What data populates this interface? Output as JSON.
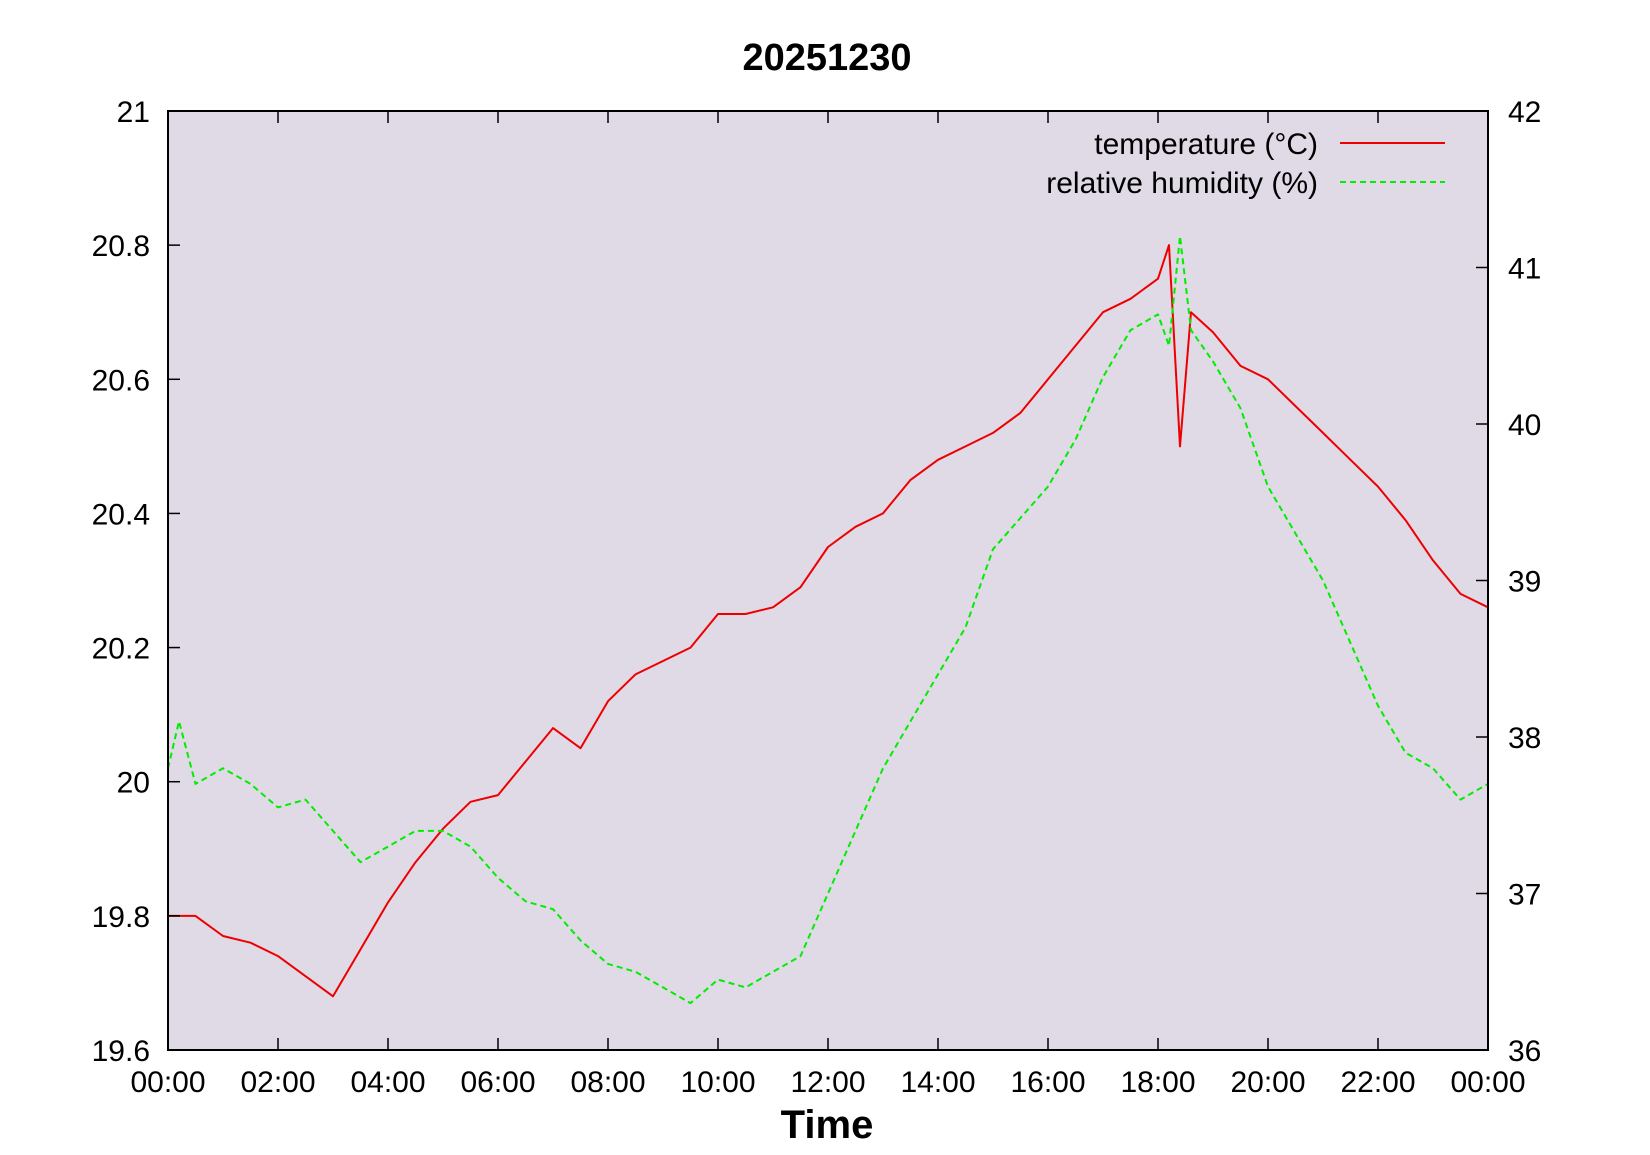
{
  "chart_data": {
    "type": "line",
    "title": "20251230",
    "xlabel": "Time",
    "ylabel_left": "",
    "ylabel_right": "",
    "x_ticks": [
      "00:00",
      "02:00",
      "04:00",
      "06:00",
      "08:00",
      "10:00",
      "12:00",
      "14:00",
      "16:00",
      "18:00",
      "20:00",
      "22:00",
      "00:00"
    ],
    "xlim_hours": [
      0,
      24
    ],
    "ylim_left": [
      19.6,
      21
    ],
    "yticks_left": [
      "19.6",
      "19.8",
      "20",
      "20.2",
      "20.4",
      "20.6",
      "20.8",
      "21"
    ],
    "ylim_right": [
      36,
      42
    ],
    "yticks_right": [
      "36",
      "37",
      "38",
      "39",
      "40",
      "41",
      "42"
    ],
    "grid": false,
    "legend_position": "top-right",
    "plot_background": "#e0d9e6",
    "series": [
      {
        "name": "temperature (°C)",
        "axis": "left",
        "color": "#ee0000",
        "style": "solid",
        "x_hours": [
          0,
          0.5,
          1,
          1.5,
          2,
          2.5,
          3,
          3.5,
          4,
          4.5,
          5,
          5.5,
          6,
          6.5,
          7,
          7.5,
          8,
          8.5,
          9,
          9.5,
          10,
          10.5,
          11,
          11.5,
          12,
          12.5,
          13,
          13.5,
          14,
          14.5,
          15,
          15.5,
          16,
          16.5,
          17,
          17.5,
          18,
          18.2,
          18.4,
          18.6,
          19,
          19.5,
          20,
          20.5,
          21,
          21.5,
          22,
          22.5,
          23,
          23.5,
          24
        ],
        "values": [
          19.8,
          19.8,
          19.77,
          19.76,
          19.74,
          19.71,
          19.68,
          19.75,
          19.82,
          19.88,
          19.93,
          19.97,
          19.98,
          20.03,
          20.08,
          20.05,
          20.12,
          20.16,
          20.18,
          20.2,
          20.25,
          20.25,
          20.26,
          20.29,
          20.35,
          20.38,
          20.4,
          20.45,
          20.48,
          20.5,
          20.52,
          20.55,
          20.6,
          20.65,
          20.7,
          20.72,
          20.75,
          20.8,
          20.5,
          20.7,
          20.67,
          20.62,
          20.6,
          20.56,
          20.52,
          20.48,
          20.44,
          20.39,
          20.33,
          20.28,
          20.26
        ]
      },
      {
        "name": "relative humidity (%)",
        "axis": "right",
        "color": "#00ee00",
        "style": "dashed",
        "x_hours": [
          0,
          0.2,
          0.5,
          1,
          1.5,
          2,
          2.5,
          3,
          3.5,
          4,
          4.5,
          5,
          5.5,
          6,
          6.5,
          7,
          7.5,
          8,
          8.5,
          9,
          9.5,
          10,
          10.5,
          11,
          11.5,
          12,
          12.5,
          13,
          13.5,
          14,
          14.5,
          15,
          15.5,
          16,
          16.5,
          17,
          17.5,
          18,
          18.2,
          18.4,
          18.6,
          19,
          19.5,
          20,
          20.5,
          21,
          21.5,
          22,
          22.5,
          23,
          23.5,
          24
        ],
        "values": [
          37.8,
          38.1,
          37.7,
          37.8,
          37.7,
          37.55,
          37.6,
          37.4,
          37.2,
          37.3,
          37.4,
          37.4,
          37.3,
          37.1,
          36.95,
          36.9,
          36.7,
          36.55,
          36.5,
          36.4,
          36.3,
          36.45,
          36.4,
          36.5,
          36.6,
          37.0,
          37.4,
          37.8,
          38.1,
          38.4,
          38.7,
          39.2,
          39.4,
          39.6,
          39.9,
          40.3,
          40.6,
          40.7,
          40.5,
          41.2,
          40.6,
          40.4,
          40.1,
          39.6,
          39.3,
          39.0,
          38.6,
          38.2,
          37.9,
          37.8,
          37.6,
          37.7
        ]
      }
    ]
  }
}
